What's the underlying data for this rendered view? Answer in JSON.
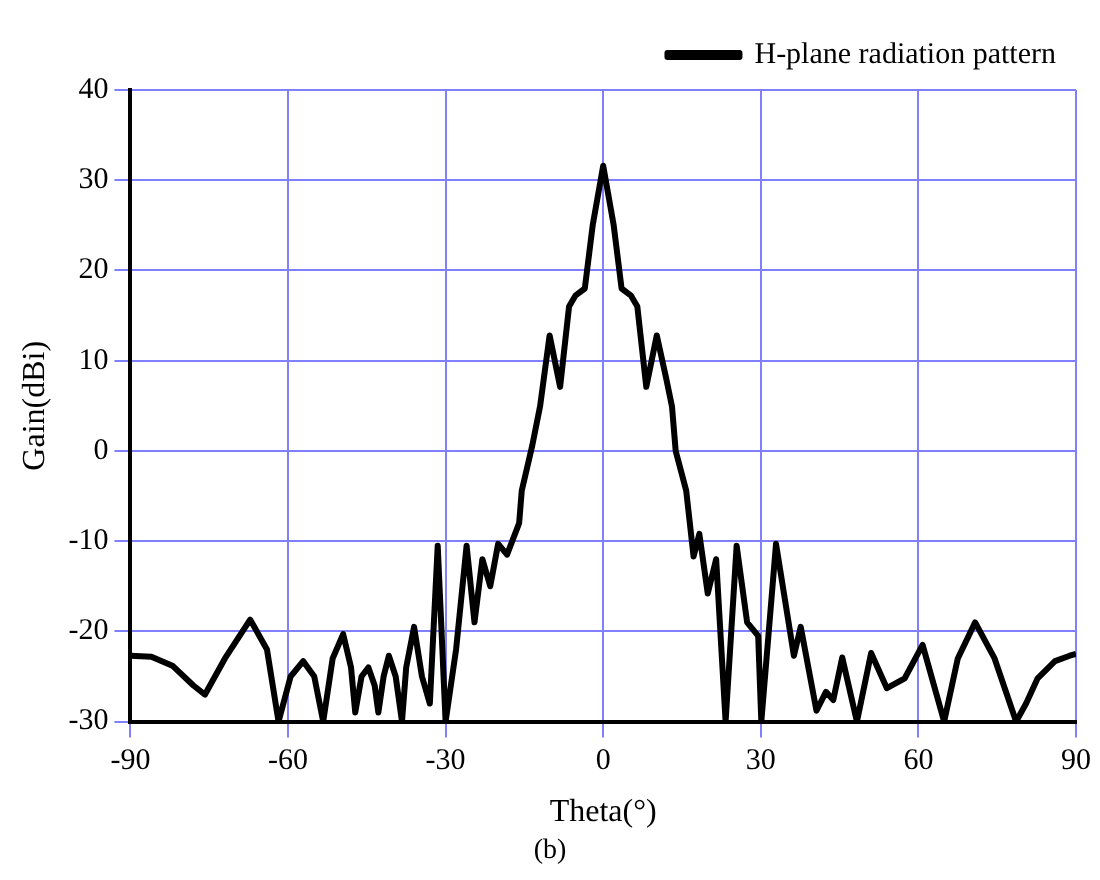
{
  "chart_data": {
    "type": "line",
    "xlabel": "Theta(°)",
    "ylabel": "Gain(dBi)",
    "annotations": [
      "(b)"
    ],
    "x": [
      -90,
      -86,
      -82,
      -78,
      -75.8,
      -72,
      -67.2,
      -64,
      -61.8,
      -59.5,
      -57.1,
      -55,
      -53.3,
      -51.5,
      -49.5,
      -48,
      -47.2,
      -46,
      -44.7,
      -43.5,
      -42.8,
      -41.8,
      -40.8,
      -39.5,
      -38.3,
      -37.5,
      -36,
      -34.5,
      -33,
      -31.5,
      -30,
      -28,
      -26,
      -24.5,
      -23,
      -21.5,
      -20,
      -18.3,
      -16,
      -15.5,
      -13.5,
      -12,
      -10.2,
      -8.2,
      -6.5,
      -5.3,
      -3.5,
      -2,
      0,
      2,
      3.5,
      5.3,
      6.5,
      8.2,
      10.2,
      12,
      13.1,
      13.8,
      15.8,
      17.2,
      18.3,
      19.9,
      21.5,
      23.3,
      25.4,
      27.4,
      29.5,
      30.1,
      32.9,
      36.3,
      37.6,
      40.6,
      42.4,
      43.8,
      45.5,
      48.3,
      51,
      54,
      57.4,
      60.8,
      64.9,
      67.5,
      70.8,
      74.5,
      78.6,
      80.5,
      82.7,
      86,
      88.8,
      90
    ],
    "series": [
      {
        "name": "H-plane radiation pattern",
        "color": "#000000",
        "values": [
          -22.7,
          -22.8,
          -23.8,
          -26,
          -27,
          -23,
          -18.7,
          -22,
          -30,
          -25,
          -23.3,
          -25,
          -30,
          -23,
          -20.3,
          -24,
          -29,
          -25,
          -24,
          -26,
          -29,
          -25,
          -22.7,
          -25,
          -30,
          -24,
          -19.5,
          -25,
          -28,
          -10.5,
          -30,
          -22,
          -10.5,
          -19,
          -12,
          -15,
          -10.3,
          -11.5,
          -8,
          -4.4,
          0.6,
          5,
          12.8,
          7.1,
          16,
          17.2,
          18,
          25,
          31.6,
          25,
          18,
          17.2,
          16,
          7.1,
          12.8,
          8,
          4.9,
          0,
          -4.4,
          -11.7,
          -9.2,
          -15.8,
          -12,
          -30,
          -10.5,
          -19,
          -20.5,
          -30,
          -10.3,
          -22.7,
          -19.5,
          -28.8,
          -26.7,
          -27.6,
          -22.9,
          -30,
          -22.4,
          -26.3,
          -25.2,
          -21.5,
          -30,
          -23,
          -19,
          -23,
          -30,
          -28,
          -25.2,
          -23.3,
          -22.7,
          -22.5
        ]
      }
    ],
    "xlim": [
      -90,
      90
    ],
    "xticks": [
      -90,
      -60,
      -30,
      0,
      30,
      60,
      90
    ],
    "ylim": [
      -30,
      40
    ],
    "yticks": [
      -30,
      -20,
      -10,
      0,
      10,
      20,
      30,
      40
    ],
    "grid": true,
    "legend": "top right",
    "marker": "none",
    "line_style": "solid"
  }
}
